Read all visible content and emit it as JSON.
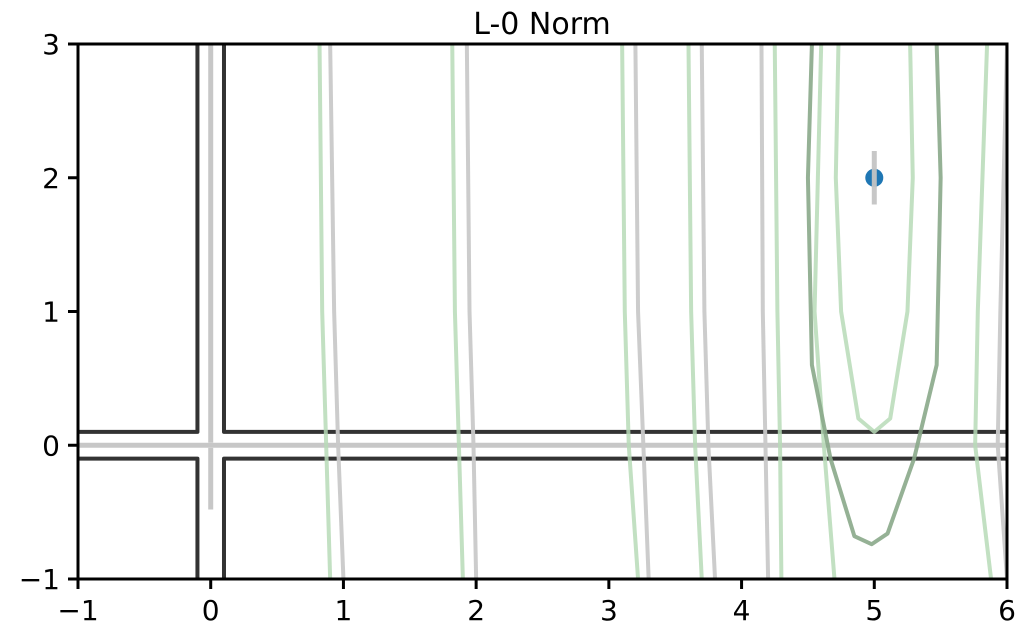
{
  "chart_data": {
    "type": "line",
    "title": "L-0 Norm",
    "xlabel": "",
    "ylabel": "",
    "xlim": [
      -1,
      6
    ],
    "ylim": [
      -1,
      3
    ],
    "x_ticks": [
      "−1",
      "0",
      "1",
      "2",
      "3",
      "4",
      "5",
      "6"
    ],
    "y_ticks": [
      "−1",
      "0",
      "1",
      "2",
      "3"
    ],
    "grid": false,
    "series": [
      {
        "kind": "scatter",
        "x": [
          5
        ],
        "y": [
          2
        ],
        "color": "#1f77b4"
      },
      {
        "kind": "lines",
        "color": "#000000",
        "opacity": 0.8,
        "width": 4,
        "paths": [
          [
            [
              -0.1,
              -1
            ],
            [
              -0.1,
              -0.1
            ],
            [
              -1,
              -0.1
            ]
          ],
          [
            [
              0.1,
              3
            ],
            [
              0.1,
              0.1
            ],
            [
              6,
              0.1
            ]
          ],
          [
            [
              -1,
              0.1
            ],
            [
              -0.1,
              0.1
            ],
            [
              -0.1,
              3
            ]
          ],
          [
            [
              6,
              -0.1
            ],
            [
              0.1,
              -0.1
            ],
            [
              0.1,
              -1
            ]
          ]
        ]
      },
      {
        "kind": "lines",
        "color": "#c4c4c4",
        "opacity": 0.95,
        "width": 5,
        "paths": [
          [
            [
              -1,
              0
            ],
            [
              6,
              0
            ]
          ],
          [
            [
              0,
              0.02
            ],
            [
              0,
              3
            ]
          ],
          [
            [
              0,
              -0.02
            ],
            [
              0,
              -0.48
            ]
          ],
          [
            [
              5,
              2.2
            ],
            [
              5,
              1.8
            ]
          ]
        ]
      },
      {
        "kind": "lines",
        "color": "#c9c9c9",
        "opacity": 0.95,
        "width": 4,
        "paths": [
          [
            [
              0.9,
              3
            ],
            [
              0.93,
              1
            ],
            [
              0.96,
              0
            ],
            [
              1,
              -1
            ]
          ],
          [
            [
              1.93,
              3
            ],
            [
              1.95,
              1
            ],
            [
              1.98,
              0
            ],
            [
              2,
              -1
            ]
          ],
          [
            [
              3.2,
              3
            ],
            [
              3.22,
              1
            ],
            [
              3.26,
              0
            ],
            [
              3.3,
              -1
            ]
          ],
          [
            [
              3.7,
              3
            ],
            [
              3.72,
              1
            ],
            [
              3.75,
              0
            ],
            [
              3.8,
              -1
            ]
          ],
          [
            [
              4.15,
              3
            ],
            [
              4.16,
              1
            ],
            [
              4.18,
              0
            ],
            [
              4.2,
              -1
            ]
          ],
          [
            [
              6,
              3
            ],
            [
              5.95,
              1
            ],
            [
              5.93,
              0
            ],
            [
              6,
              -1
            ]
          ]
        ]
      },
      {
        "kind": "lines",
        "color": "#b7dab7",
        "opacity": 0.85,
        "width": 4,
        "paths": [
          [
            [
              0.82,
              3
            ],
            [
              0.84,
              1
            ],
            [
              0.87,
              0
            ],
            [
              0.9,
              -1
            ]
          ],
          [
            [
              1.82,
              3
            ],
            [
              1.84,
              1
            ],
            [
              1.87,
              0
            ],
            [
              1.9,
              -1
            ]
          ],
          [
            [
              3.1,
              3
            ],
            [
              3.12,
              1
            ],
            [
              3.15,
              0
            ],
            [
              3.22,
              -1
            ]
          ],
          [
            [
              3.6,
              3
            ],
            [
              3.62,
              1
            ],
            [
              3.65,
              0
            ],
            [
              3.7,
              -1
            ]
          ],
          [
            [
              4.25,
              3
            ],
            [
              4.27,
              1
            ],
            [
              4.29,
              0
            ],
            [
              4.3,
              -1
            ]
          ],
          [
            [
              4.6,
              3
            ],
            [
              4.55,
              1
            ],
            [
              4.62,
              0
            ],
            [
              4.7,
              -1
            ]
          ],
          [
            [
              5.85,
              3
            ],
            [
              5.78,
              1
            ],
            [
              5.76,
              0
            ],
            [
              5.88,
              -1
            ]
          ],
          [
            [
              4.73,
              3
            ],
            [
              4.71,
              2
            ],
            [
              4.75,
              1
            ],
            [
              4.88,
              0.2
            ],
            [
              5,
              0.1
            ],
            [
              5.12,
              0.2
            ],
            [
              5.25,
              1
            ],
            [
              5.29,
              2
            ],
            [
              5.27,
              3
            ]
          ]
        ]
      },
      {
        "kind": "lines",
        "color": "#8aa88a",
        "opacity": 0.9,
        "width": 4,
        "paths": [
          [
            [
              4.53,
              3
            ],
            [
              4.5,
              2
            ],
            [
              4.53,
              0.6
            ],
            [
              4.67,
              -0.1
            ],
            [
              4.85,
              -0.68
            ],
            [
              4.98,
              -0.74
            ],
            [
              5.1,
              -0.66
            ],
            [
              5.3,
              -0.1
            ],
            [
              5.47,
              0.6
            ],
            [
              5.5,
              2
            ],
            [
              5.47,
              3
            ]
          ]
        ]
      }
    ]
  }
}
